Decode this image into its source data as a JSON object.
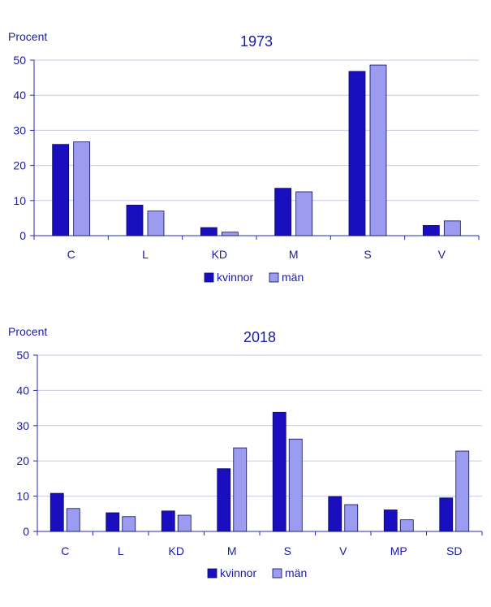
{
  "colors": {
    "kvinnor": "#1a0fbf",
    "man": "#9b9bf0",
    "text": "#1a1aa6",
    "grid": "#c8c8ec",
    "axis": "#2a2ab0"
  },
  "chart_data": [
    {
      "type": "bar",
      "title": "1973",
      "ylabel": "Procent",
      "ylim": [
        0,
        50
      ],
      "yticks": [
        "0",
        "10",
        "20",
        "30",
        "40",
        "50"
      ],
      "categories": [
        "C",
        "L",
        "KD",
        "M",
        "S",
        "V"
      ],
      "series": [
        {
          "name": "kvinnor",
          "values": [
            26,
            8.7,
            2.3,
            13.5,
            46.8,
            2.9
          ]
        },
        {
          "name": "män",
          "values": [
            26.7,
            7,
            1,
            12.5,
            48.6,
            4.2
          ]
        }
      ],
      "legend": "bottom-center"
    },
    {
      "type": "bar",
      "title": "2018",
      "ylabel": "Procent",
      "ylim": [
        0,
        50
      ],
      "yticks": [
        "0",
        "10",
        "20",
        "30",
        "40",
        "50"
      ],
      "categories": [
        "C",
        "L",
        "KD",
        "M",
        "S",
        "V",
        "MP",
        "SD"
      ],
      "series": [
        {
          "name": "kvinnor",
          "values": [
            10.8,
            5.3,
            5.8,
            17.8,
            33.8,
            9.9,
            6.1,
            9.5
          ]
        },
        {
          "name": "män",
          "values": [
            6.5,
            4.2,
            4.6,
            23.7,
            26.2,
            7.6,
            3.3,
            22.8
          ]
        }
      ],
      "legend": "bottom-center"
    }
  ]
}
